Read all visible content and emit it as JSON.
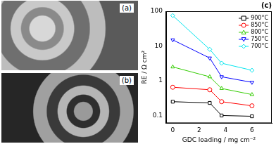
{
  "images": [
    {
      "label": "(a)"
    },
    {
      "label": "(b)"
    }
  ],
  "chart_data": {
    "type": "line",
    "title": "(c)",
    "x_label": "GDC loading / mg cm⁻²",
    "y_label": "RE / Ω cm²",
    "x": [
      0,
      2.8,
      3.7,
      6
    ],
    "series": [
      {
        "name": "900°C",
        "color": "#000000",
        "marker": "square",
        "values": [
          0.25,
          0.23,
          0.1,
          0.095
        ]
      },
      {
        "name": "850°C",
        "color": "#ff0000",
        "marker": "circle",
        "values": [
          0.65,
          0.55,
          0.25,
          0.19
        ]
      },
      {
        "name": "800°C",
        "color": "#33cc00",
        "marker": "triangle-up",
        "values": [
          2.5,
          1.3,
          0.6,
          0.4
        ]
      },
      {
        "name": "750°C",
        "color": "#0000ff",
        "marker": "triangle-down",
        "values": [
          15,
          4.5,
          1.3,
          0.9
        ]
      },
      {
        "name": "700°C",
        "color": "#00e5ee",
        "marker": "diamond",
        "values": [
          75,
          8,
          3.2,
          2.0
        ]
      }
    ],
    "xlim": [
      -0.5,
      7.5
    ],
    "xticks": [
      0,
      2,
      4,
      6
    ],
    "ylim": [
      0.06,
      100
    ],
    "yticks": [
      0.1,
      1,
      10,
      100
    ],
    "log": "y",
    "grid": false,
    "legend": "top-right"
  }
}
